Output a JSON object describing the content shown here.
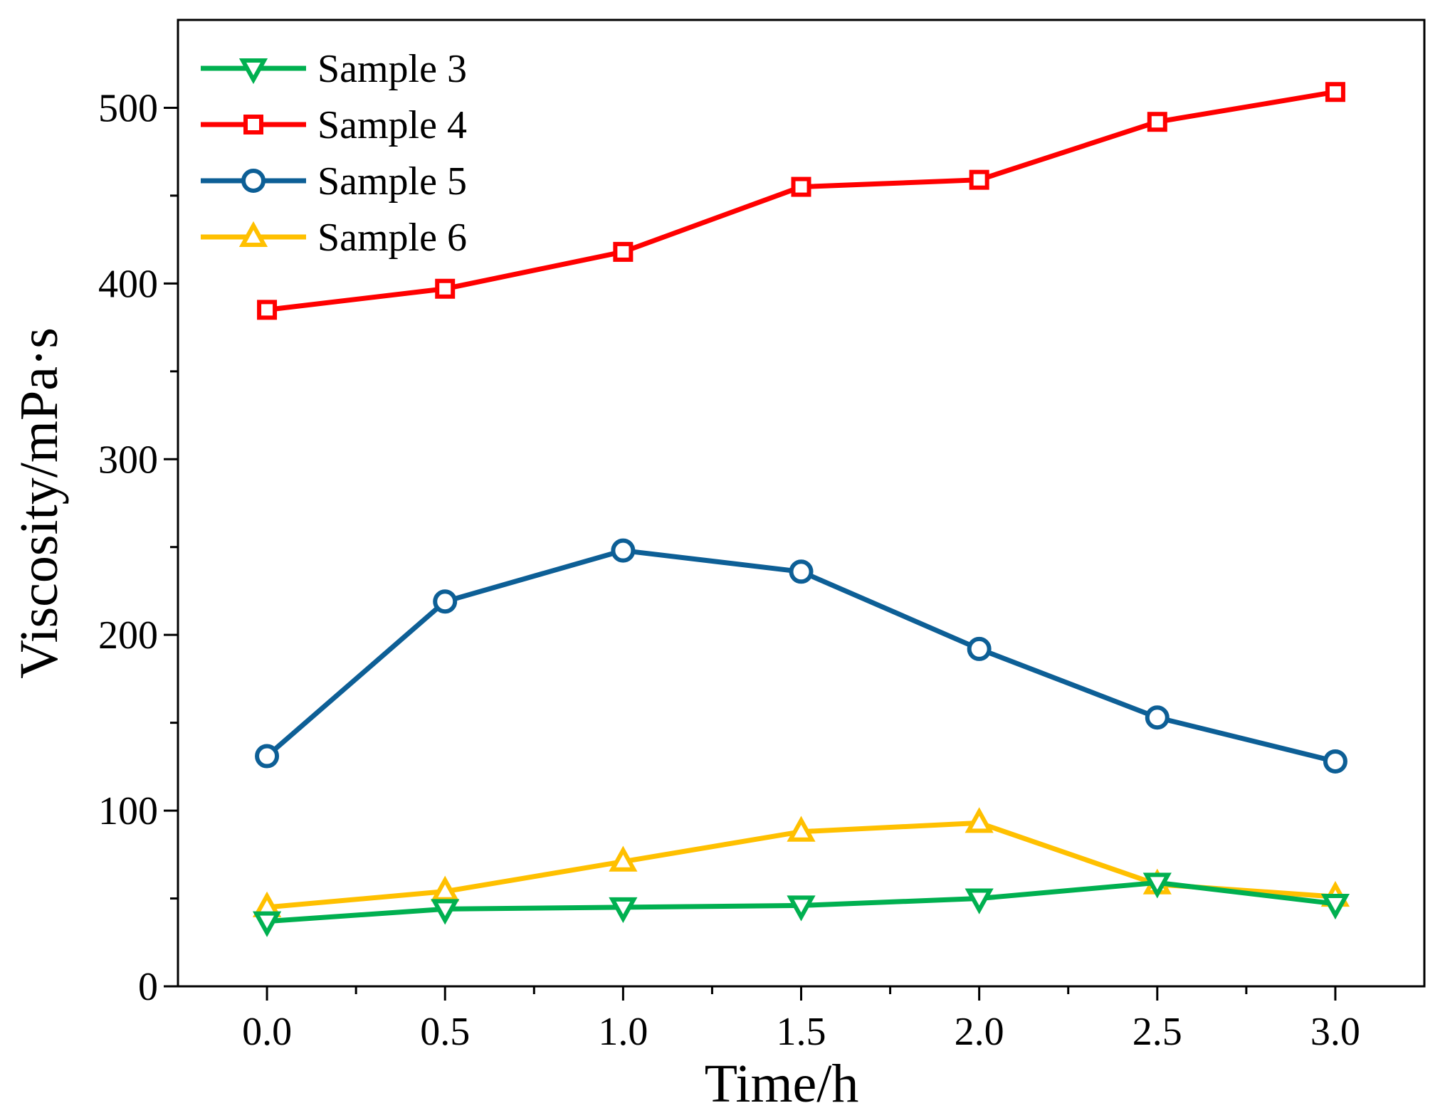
{
  "chart_data": {
    "type": "line",
    "title": "",
    "xlabel": "Time/h",
    "ylabel": "Viscosity/mPa·s",
    "x": [
      0.0,
      0.5,
      1.0,
      1.5,
      2.0,
      2.5,
      3.0
    ],
    "x_tick_labels": [
      "0.0",
      "0.5",
      "1.0",
      "1.5",
      "2.0",
      "2.5",
      "3.0"
    ],
    "y_ticks": [
      0,
      100,
      200,
      300,
      400,
      500
    ],
    "y_tick_labels": [
      "0",
      "100",
      "200",
      "300",
      "400",
      "500"
    ],
    "xlim": [
      -0.25,
      3.25
    ],
    "ylim": [
      0,
      550
    ],
    "grid": false,
    "legend_position": "top-left",
    "series": [
      {
        "name": "Sample 3",
        "color": "#00b050",
        "marker": "triangle-down",
        "values": [
          37,
          44,
          45,
          46,
          50,
          59,
          47
        ]
      },
      {
        "name": "Sample 4",
        "color": "#ff0000",
        "marker": "square",
        "values": [
          385,
          397,
          418,
          455,
          459,
          492,
          509
        ]
      },
      {
        "name": "Sample 5",
        "color": "#0d5f96",
        "marker": "circle",
        "values": [
          131,
          219,
          248,
          236,
          192,
          153,
          128
        ]
      },
      {
        "name": "Sample 6",
        "color": "#ffc000",
        "marker": "triangle-up",
        "values": [
          45,
          54,
          71,
          88,
          93,
          58,
          51
        ]
      }
    ]
  }
}
